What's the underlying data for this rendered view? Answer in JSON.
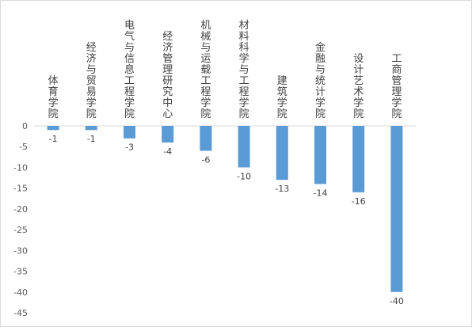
{
  "chart_data": {
    "type": "bar",
    "orientation": "vertical",
    "title": "",
    "xlabel": "",
    "ylabel": "",
    "categories": [
      "体育学院",
      "经济与贸易学院",
      "电气与信息工程学院",
      "经济管理研究中心",
      "机械与运载工程学院",
      "材料科学与工程学院",
      "建筑学院",
      "金融与统计学院",
      "设计艺术学院",
      "工商管理学院"
    ],
    "values": [
      -1,
      -1,
      -3,
      -4,
      -6,
      -10,
      -13,
      -14,
      -16,
      -40
    ],
    "ylim": [
      -45,
      0
    ],
    "yticks": [
      0,
      -5,
      -10,
      -15,
      -20,
      -25,
      -30,
      -35,
      -40,
      -45
    ],
    "category_labels_position": "top, vertical text",
    "data_labels": true,
    "gridlines": false,
    "legend": "none",
    "bar_color": "#5b9bd5"
  }
}
